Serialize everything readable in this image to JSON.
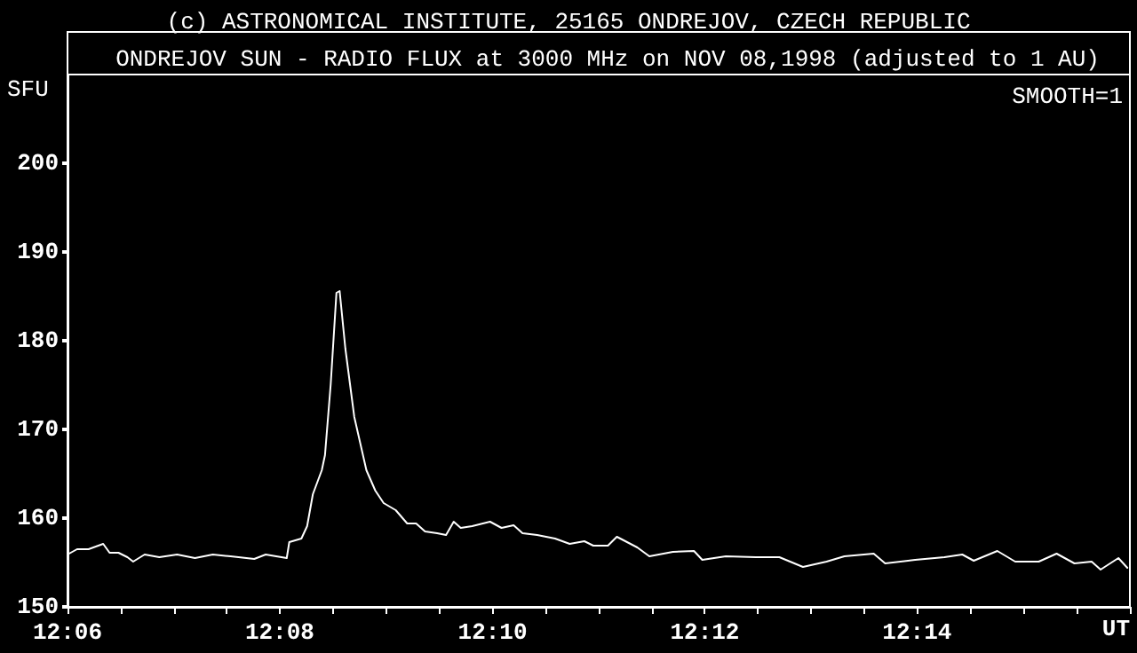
{
  "chart_data": {
    "type": "line",
    "subtitle": "(c) ASTRONOMICAL INSTITUTE, 25165 ONDREJOV, CZECH REPUBLIC",
    "title": "ONDREJOV SUN - RADIO FLUX at 3000 MHz on NOV 08,1998 (adjusted to 1 AU)",
    "xlabel": "UT",
    "ylabel": "SFU",
    "annotations": [
      "SMOOTH=1"
    ],
    "x": [
      12.1,
      12.1015,
      12.1033,
      12.1056,
      12.1066,
      12.108,
      12.1094,
      12.1103,
      12.1121,
      12.1144,
      12.1172,
      12.12,
      12.1228,
      12.1256,
      12.1293,
      12.1311,
      12.1344,
      12.1348,
      12.1367,
      12.1376,
      12.1385,
      12.1399,
      12.1404,
      12.1413,
      12.1422,
      12.1427,
      12.1436,
      12.145,
      12.1469,
      12.1483,
      12.1496,
      12.1515,
      12.1533,
      12.1547,
      12.1561,
      12.158,
      12.1594,
      12.1606,
      12.1617,
      12.1635,
      12.1663,
      12.1681,
      12.17,
      12.1714,
      12.1737,
      12.1765,
      12.1788,
      12.1811,
      12.1825,
      12.1848,
      12.1862,
      12.1894,
      12.1913,
      12.195,
      12.1983,
      12.1996,
      12.2033,
      12.208,
      12.2117,
      12.2154,
      12.2191,
      12.2219,
      12.2265,
      12.2283,
      12.233,
      12.2376,
      12.2404,
      12.2422,
      12.2459,
      12.2487,
      12.2524,
      12.2552,
      12.258,
      12.2607,
      12.2621,
      12.2649,
      12.2663
    ],
    "series": [
      {
        "color": "#ffffff",
        "values": [
          155.9,
          156.5,
          156.5,
          157.1,
          156.1,
          156.1,
          155.6,
          155.1,
          155.9,
          155.6,
          155.9,
          155.5,
          155.9,
          155.7,
          155.4,
          155.9,
          155.5,
          157.3,
          157.7,
          159.1,
          162.7,
          165.4,
          167.1,
          175.1,
          185.4,
          185.6,
          179.1,
          171.4,
          165.4,
          163.1,
          161.7,
          160.9,
          159.4,
          159.4,
          158.5,
          158.3,
          158.1,
          159.6,
          158.9,
          159.1,
          159.6,
          158.9,
          159.2,
          158.3,
          158.1,
          157.7,
          157.1,
          157.4,
          156.9,
          156.9,
          157.9,
          156.7,
          155.7,
          156.2,
          156.3,
          155.3,
          155.7,
          155.6,
          155.6,
          154.5,
          155.1,
          155.7,
          156.0,
          154.9,
          155.3,
          155.6,
          155.9,
          155.2,
          156.3,
          155.1,
          155.1,
          156.0,
          154.9,
          155.1,
          154.2,
          155.5,
          154.4
        ]
      }
    ],
    "xlim": [
      12.1,
      12.2667
    ],
    "xticks": [
      {
        "value": 12.1,
        "label": "12:06"
      },
      {
        "value": 12.1083,
        "label": null
      },
      {
        "value": 12.1167,
        "label": null
      },
      {
        "value": 12.125,
        "label": null
      },
      {
        "value": 12.1333,
        "label": "12:08"
      },
      {
        "value": 12.1417,
        "label": null
      },
      {
        "value": 12.15,
        "label": null
      },
      {
        "value": 12.1583,
        "label": null
      },
      {
        "value": 12.1667,
        "label": "12:10"
      },
      {
        "value": 12.175,
        "label": null
      },
      {
        "value": 12.1833,
        "label": null
      },
      {
        "value": 12.1917,
        "label": null
      },
      {
        "value": 12.2,
        "label": "12:12"
      },
      {
        "value": 12.2083,
        "label": null
      },
      {
        "value": 12.2167,
        "label": null
      },
      {
        "value": 12.225,
        "label": null
      },
      {
        "value": 12.2333,
        "label": "12:14"
      },
      {
        "value": 12.2417,
        "label": null
      },
      {
        "value": 12.25,
        "label": null
      },
      {
        "value": 12.2583,
        "label": null
      },
      {
        "value": 12.2667,
        "label": null
      }
    ],
    "ylim": [
      150,
      210
    ],
    "yticks": [
      150,
      160,
      170,
      180,
      190,
      200
    ],
    "grid": false,
    "marker": "none",
    "line_style": "solid"
  }
}
